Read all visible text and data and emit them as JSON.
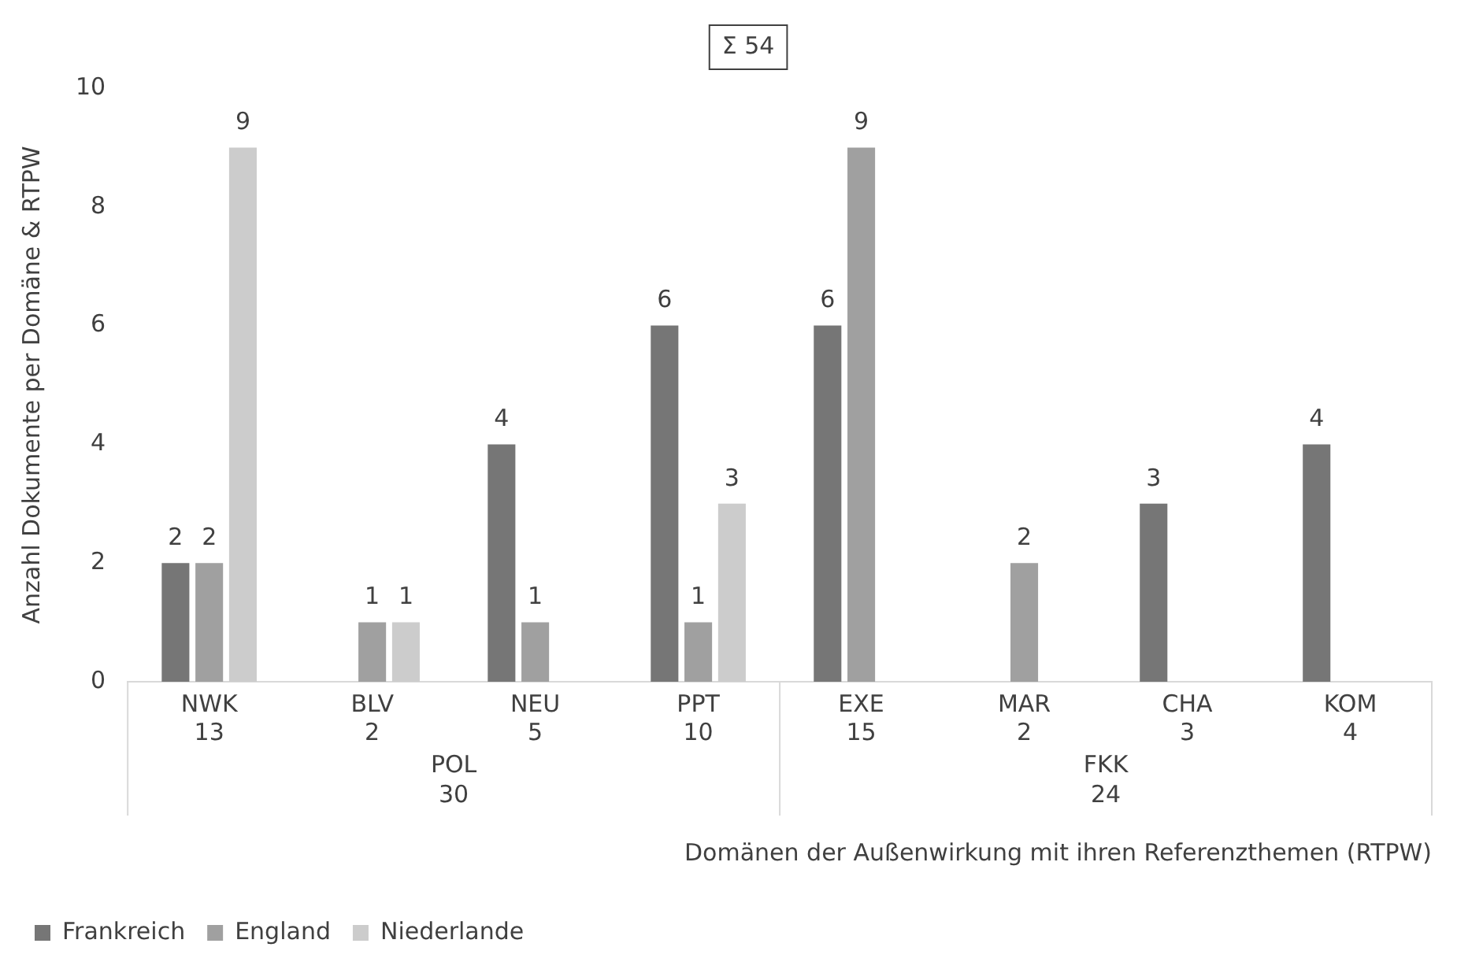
{
  "chart_data": {
    "type": "bar",
    "ylabel": "Anzahl Dokumente per Domäne & RTPW",
    "xlabel": "Domänen der Außenwirkung mit ihren Referenzthemen (RTPW)",
    "categories": [
      "NWK\n13",
      "BLV\n2",
      "NEU\n5",
      "PPT\n10",
      "EXE\n15",
      "MAR\n2",
      "CHA\n3",
      "KOM\n4"
    ],
    "series": [
      {
        "name": "Frankreich",
        "color": "#767676",
        "values": [
          2,
          null,
          4,
          6,
          6,
          null,
          3,
          4
        ]
      },
      {
        "name": "England",
        "color": "#a0a0a0",
        "values": [
          2,
          1,
          1,
          1,
          9,
          2,
          null,
          null
        ]
      },
      {
        "name": "Niederlande",
        "color": "#cccccc",
        "values": [
          9,
          1,
          null,
          3,
          null,
          null,
          null,
          null
        ]
      }
    ],
    "ylim": [
      0,
      10
    ],
    "yticks": [
      0,
      2,
      4,
      6,
      8,
      10
    ],
    "grid": false,
    "legend": "bottom left",
    "data_labels": true,
    "annotations": [
      "Σ 54",
      "POL\n30",
      "FKK\n24"
    ]
  }
}
